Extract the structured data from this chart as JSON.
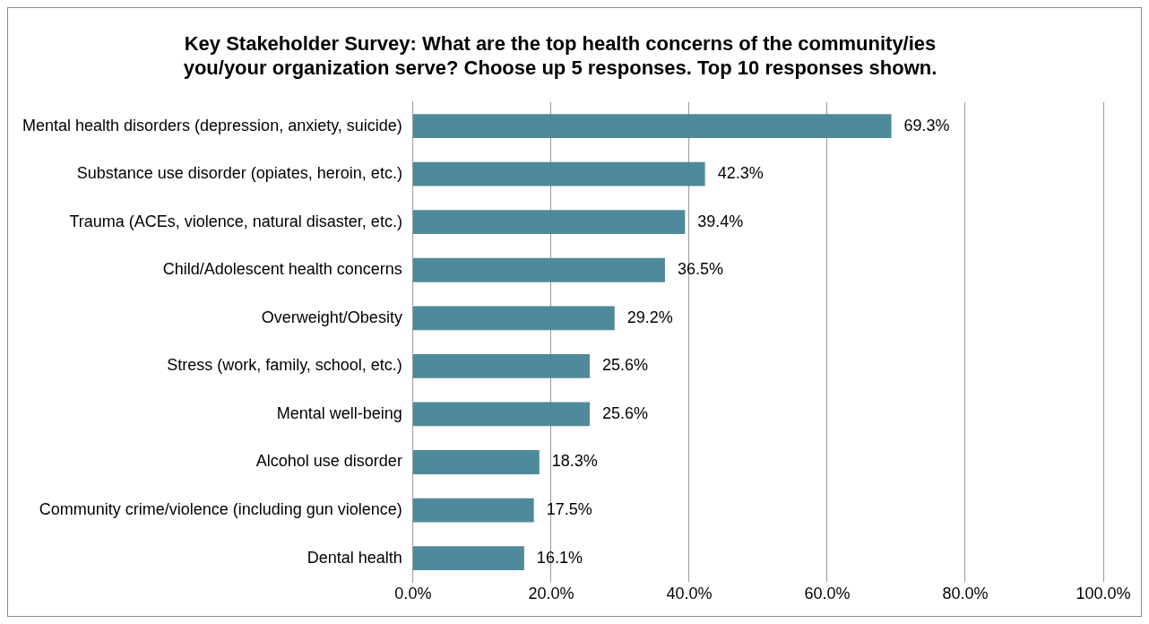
{
  "chart_data": {
    "type": "bar",
    "orientation": "horizontal",
    "title": "Key Stakeholder Survey: What are the top health concerns of the community/ies you/your organization serve? Choose up 5 responses. Top 10 responses shown.",
    "categories": [
      "Mental health disorders (depression, anxiety, suicide)",
      "Substance use disorder (opiates, heroin, etc.)",
      "Trauma (ACEs, violence, natural disaster, etc.)",
      "Child/Adolescent health concerns",
      "Overweight/Obesity",
      "Stress (work, family, school, etc.)",
      "Mental well-being",
      "Alcohol use disorder",
      "Community crime/violence (including gun violence)",
      "Dental health"
    ],
    "values": [
      69.3,
      42.3,
      39.4,
      36.5,
      29.2,
      25.6,
      25.6,
      18.3,
      17.5,
      16.1
    ],
    "value_labels": [
      "69.3%",
      "42.3%",
      "39.4%",
      "36.5%",
      "29.2%",
      "25.6%",
      "25.6%",
      "18.3%",
      "17.5%",
      "16.1%"
    ],
    "color": "#4f8a9c",
    "xlim": [
      0,
      100
    ],
    "xticks": [
      {
        "value": 0,
        "label": "0.0%"
      },
      {
        "value": 20,
        "label": "20.0%"
      },
      {
        "value": 40,
        "label": "40.0%"
      },
      {
        "value": 60,
        "label": "60.0%"
      },
      {
        "value": 80,
        "label": "80.0%"
      },
      {
        "value": 100,
        "label": "100.0%"
      }
    ],
    "grid": "x",
    "legend": false
  }
}
